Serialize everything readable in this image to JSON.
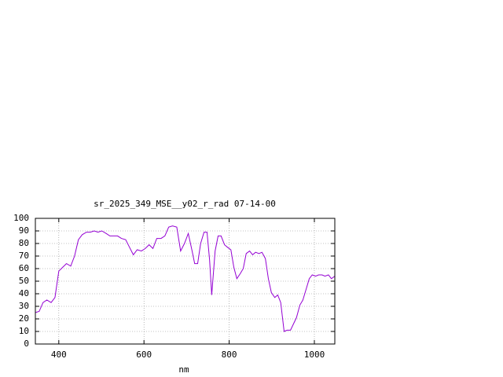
{
  "chart_data": {
    "type": "line",
    "title": "sr_2025_349_MSE__y02_r_rad 07-14-00",
    "x_label": "nm",
    "x": [
      345,
      354,
      363,
      372,
      382,
      391,
      400,
      409,
      418,
      428,
      437,
      446,
      455,
      465,
      474,
      483,
      492,
      501,
      511,
      520,
      529,
      538,
      547,
      557,
      566,
      575,
      584,
      594,
      603,
      612,
      621,
      630,
      640,
      649,
      658,
      667,
      677,
      686,
      695,
      704,
      713,
      719,
      726,
      733,
      741,
      748,
      754,
      759,
      767,
      774,
      781,
      789,
      796,
      804,
      811,
      818,
      826,
      833,
      840,
      848,
      855,
      862,
      870,
      877,
      885,
      892,
      899,
      907,
      914,
      921,
      929,
      936,
      944,
      951,
      958,
      966,
      973,
      981,
      988,
      995,
      1003,
      1010,
      1018,
      1025,
      1033,
      1040,
      1048
    ],
    "series": [
      {
        "name": null,
        "color": "#9400d3",
        "values": [
          25,
          26,
          33,
          35,
          33,
          37,
          58,
          61,
          64,
          62,
          70,
          83,
          87,
          89,
          89,
          90,
          89,
          90,
          88,
          86,
          86,
          86,
          84,
          83,
          77,
          71,
          75,
          74,
          76,
          79,
          76,
          84,
          84,
          86,
          93,
          94,
          93,
          74,
          80,
          88,
          74,
          64,
          64,
          80,
          89,
          89,
          67,
          39,
          74,
          86,
          86,
          79,
          77,
          75,
          61,
          52,
          56,
          60,
          72,
          74,
          71,
          73,
          72,
          73,
          68,
          52,
          41,
          37,
          39,
          33,
          10,
          11,
          11,
          16,
          21,
          31,
          35,
          44,
          52,
          55,
          54,
          55,
          55,
          54,
          55,
          52,
          54
        ]
      }
    ],
    "xlim": [
      345,
      1048
    ],
    "ylim": [
      0,
      100
    ],
    "xticks": [
      400,
      600,
      800,
      1000
    ],
    "yticks": [
      0,
      10,
      20,
      30,
      40,
      50,
      60,
      70,
      80,
      90,
      100
    ],
    "grid": true
  }
}
